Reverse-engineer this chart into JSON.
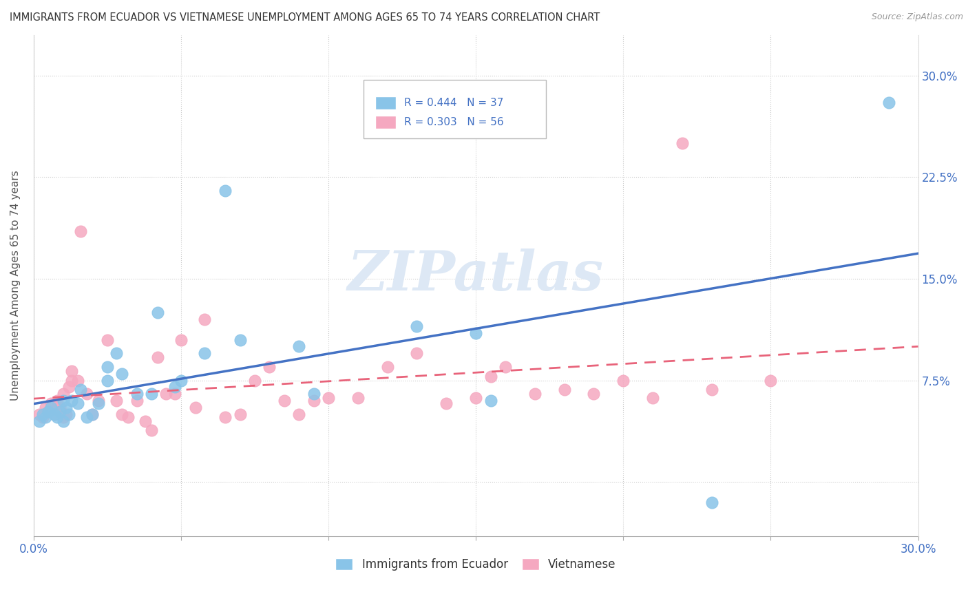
{
  "title": "IMMIGRANTS FROM ECUADOR VS VIETNAMESE UNEMPLOYMENT AMONG AGES 65 TO 74 YEARS CORRELATION CHART",
  "source": "Source: ZipAtlas.com",
  "ylabel": "Unemployment Among Ages 65 to 74 years",
  "xlim": [
    0.0,
    0.3
  ],
  "ylim": [
    -0.04,
    0.33
  ],
  "xticks": [
    0.0,
    0.05,
    0.1,
    0.15,
    0.2,
    0.25,
    0.3
  ],
  "xtick_labels": [
    "0.0%",
    "",
    "",
    "",
    "",
    "",
    "30.0%"
  ],
  "ytick_positions": [
    0.0,
    0.075,
    0.15,
    0.225,
    0.3
  ],
  "ytick_labels": [
    "",
    "7.5%",
    "15.0%",
    "22.5%",
    "30.0%"
  ],
  "blue_R": 0.444,
  "blue_N": 37,
  "pink_R": 0.303,
  "pink_N": 56,
  "blue_color": "#89c4e8",
  "pink_color": "#f5a8c0",
  "blue_line_color": "#4472c4",
  "pink_line_color": "#e8637a",
  "watermark": "ZIPatlas",
  "blue_scatter_x": [
    0.002,
    0.003,
    0.004,
    0.005,
    0.006,
    0.007,
    0.008,
    0.009,
    0.01,
    0.01,
    0.011,
    0.012,
    0.013,
    0.015,
    0.016,
    0.018,
    0.02,
    0.022,
    0.025,
    0.025,
    0.028,
    0.03,
    0.035,
    0.04,
    0.042,
    0.048,
    0.05,
    0.058,
    0.065,
    0.07,
    0.09,
    0.095,
    0.13,
    0.15,
    0.155,
    0.23,
    0.29
  ],
  "blue_scatter_y": [
    0.045,
    0.05,
    0.048,
    0.052,
    0.055,
    0.05,
    0.048,
    0.052,
    0.045,
    0.06,
    0.055,
    0.05,
    0.06,
    0.058,
    0.068,
    0.048,
    0.05,
    0.058,
    0.085,
    0.075,
    0.095,
    0.08,
    0.065,
    0.065,
    0.125,
    0.07,
    0.075,
    0.095,
    0.215,
    0.105,
    0.1,
    0.065,
    0.115,
    0.11,
    0.06,
    -0.015,
    0.28
  ],
  "pink_scatter_x": [
    0.002,
    0.003,
    0.004,
    0.005,
    0.006,
    0.007,
    0.008,
    0.008,
    0.009,
    0.01,
    0.01,
    0.011,
    0.012,
    0.013,
    0.013,
    0.015,
    0.016,
    0.018,
    0.02,
    0.022,
    0.025,
    0.028,
    0.03,
    0.032,
    0.035,
    0.038,
    0.04,
    0.042,
    0.045,
    0.048,
    0.05,
    0.055,
    0.058,
    0.065,
    0.07,
    0.075,
    0.08,
    0.085,
    0.09,
    0.095,
    0.1,
    0.11,
    0.12,
    0.13,
    0.14,
    0.15,
    0.155,
    0.16,
    0.17,
    0.18,
    0.19,
    0.2,
    0.21,
    0.22,
    0.23,
    0.25
  ],
  "pink_scatter_y": [
    0.05,
    0.048,
    0.055,
    0.052,
    0.058,
    0.05,
    0.055,
    0.06,
    0.055,
    0.048,
    0.065,
    0.05,
    0.07,
    0.075,
    0.082,
    0.075,
    0.185,
    0.065,
    0.05,
    0.06,
    0.105,
    0.06,
    0.05,
    0.048,
    0.06,
    0.045,
    0.038,
    0.092,
    0.065,
    0.065,
    0.105,
    0.055,
    0.12,
    0.048,
    0.05,
    0.075,
    0.085,
    0.06,
    0.05,
    0.06,
    0.062,
    0.062,
    0.085,
    0.095,
    0.058,
    0.062,
    0.078,
    0.085,
    0.065,
    0.068,
    0.065,
    0.075,
    0.062,
    0.25,
    0.068,
    0.075
  ]
}
